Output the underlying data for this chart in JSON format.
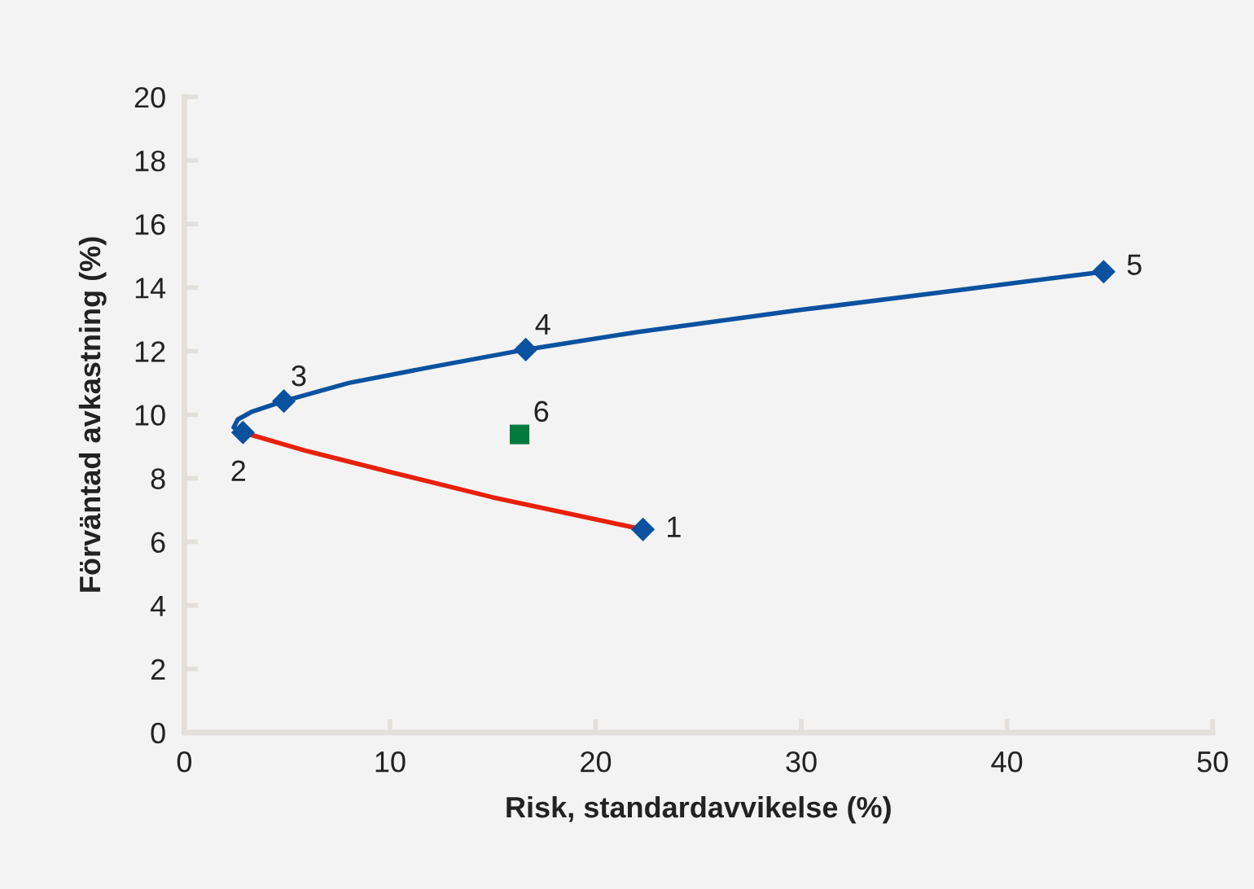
{
  "chart_data": {
    "type": "line",
    "xlabel": "Risk, standardavvikelse (%)",
    "ylabel": "Förväntad avkastning (%)",
    "xlim": [
      0,
      50
    ],
    "xticks": [
      0,
      10,
      20,
      30,
      40,
      50
    ],
    "ylim": [
      0,
      20
    ],
    "yticks": [
      0,
      2,
      4,
      6,
      8,
      10,
      12,
      14,
      16,
      18,
      20
    ],
    "grid": false,
    "legend": false,
    "series": [
      {
        "color": "#0a52a0",
        "marker": "none",
        "x": [
          2.85,
          2.4,
          2.6,
          3.3,
          4.84,
          8,
          12,
          16.6,
          22,
          30,
          38,
          44.7
        ],
        "values": [
          9.44,
          9.6,
          9.85,
          10.1,
          10.43,
          11.0,
          11.5,
          12.05,
          12.6,
          13.3,
          13.95,
          14.5
        ]
      },
      {
        "color": "#e8200c",
        "marker": "none",
        "x": [
          2.85,
          6,
          10,
          15,
          22.3
        ],
        "values": [
          9.44,
          8.85,
          8.2,
          7.4,
          6.39
        ]
      },
      {
        "type": "scatter",
        "color": "#0a52a0",
        "marker": "diamond",
        "x": [
          22.3,
          2.85,
          4.84,
          16.6,
          44.7
        ],
        "values": [
          6.39,
          9.44,
          10.43,
          12.05,
          14.5
        ]
      },
      {
        "type": "scatter",
        "color": "#007a3d",
        "marker": "square",
        "x": [
          16.3
        ],
        "values": [
          9.38
        ]
      }
    ],
    "annotations": [
      {
        "text": "1",
        "x": 22.3,
        "y": 6.39
      },
      {
        "text": "2",
        "x": 2.85,
        "y": 9.44
      },
      {
        "text": "3",
        "x": 4.84,
        "y": 10.43
      },
      {
        "text": "4",
        "x": 16.6,
        "y": 12.05
      },
      {
        "text": "5",
        "x": 44.7,
        "y": 14.5
      },
      {
        "text": "6",
        "x": 16.3,
        "y": 9.38
      }
    ]
  }
}
